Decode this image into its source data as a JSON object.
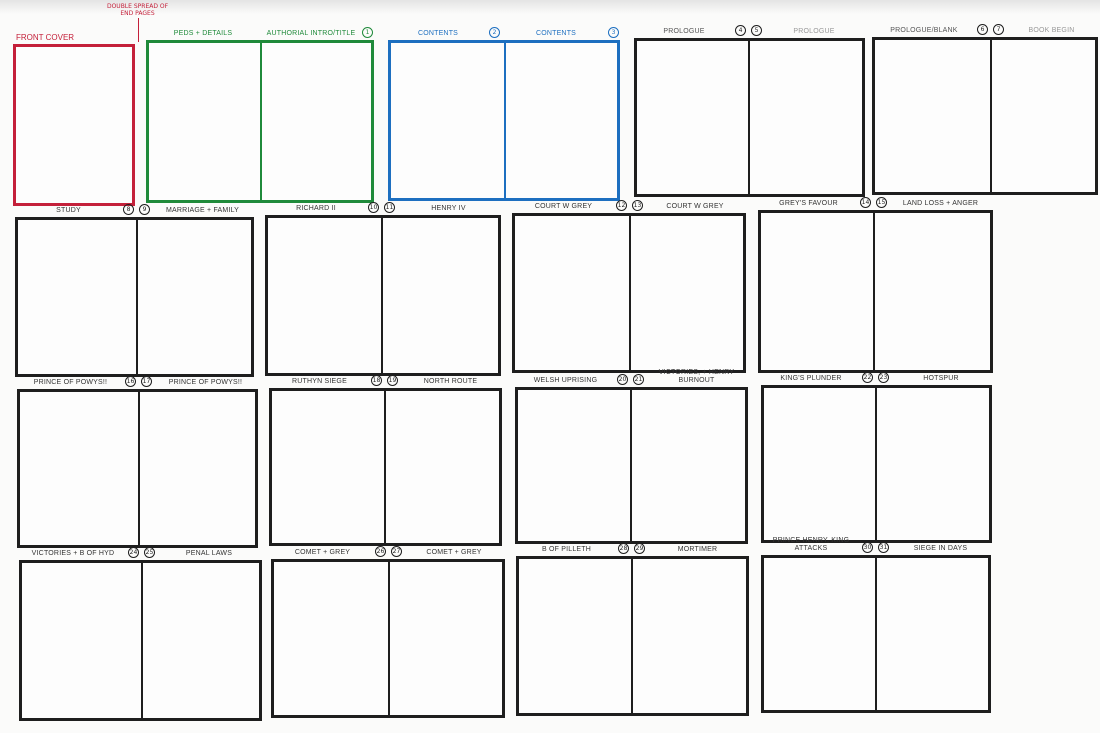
{
  "note": {
    "line1": "Double spread of",
    "line2": "end pages",
    "color": "#c4203a"
  },
  "colors": {
    "front": "#c4203a",
    "green": "#1f8a3a",
    "blue": "#1d6fc0",
    "black": "#1e1e1e",
    "grey_label": "#999999"
  },
  "front_cover": {
    "label": "Front Cover"
  },
  "spreads": [
    {
      "left": "Peds + Details",
      "right": "Authorial Intro/Title",
      "ln": "",
      "rn": "1",
      "color": "green"
    },
    {
      "left": "Contents",
      "right": "Contents",
      "ln": "2",
      "rn": "3",
      "color": "blue"
    },
    {
      "left": "Prologue",
      "right": "Prologue",
      "ln": "4",
      "rn": "5",
      "color": "black"
    },
    {
      "left": "Prologue/Blank",
      "right": "Book begin",
      "ln": "6",
      "rn": "7",
      "color": "black"
    },
    {
      "left": "Study",
      "right": "Marriage + Family",
      "ln": "8",
      "rn": "9",
      "color": "black"
    },
    {
      "left": "Richard II",
      "right": "Henry IV",
      "ln": "10",
      "rn": "11",
      "color": "black"
    },
    {
      "left": "Court w Grey",
      "right": "Court w Grey",
      "ln": "12",
      "rn": "13",
      "color": "black"
    },
    {
      "left": "Grey's Favour",
      "right": "Land Loss + Anger",
      "ln": "14",
      "rn": "15",
      "color": "black"
    },
    {
      "left": "Prince of Powys!!",
      "right": "Prince of Powys!!",
      "ln": "16",
      "rn": "17",
      "color": "black"
    },
    {
      "left": "Ruthyn Siege",
      "right": "North Route",
      "ln": "18",
      "rn": "19",
      "color": "black"
    },
    {
      "left": "Welsh Uprising",
      "right": "Victories, + Henry Burnout",
      "ln": "20",
      "rn": "21",
      "color": "black"
    },
    {
      "left": "King's Plunder",
      "right": "Hotspur",
      "ln": "22",
      "rn": "23",
      "color": "black"
    },
    {
      "left": "Victories + B of Hyd",
      "right": "Penal Laws",
      "ln": "24",
      "rn": "25",
      "color": "black"
    },
    {
      "left": "Comet + Grey",
      "right": "Comet + Grey",
      "ln": "26",
      "rn": "27",
      "color": "black"
    },
    {
      "left": "B of Pilleth",
      "right": "Mortimer",
      "ln": "28",
      "rn": "29",
      "color": "black"
    },
    {
      "left": "Prince Henry, King Attacks",
      "right": "Siege in days",
      "ln": "30",
      "rn": "31",
      "color": "black"
    }
  ]
}
